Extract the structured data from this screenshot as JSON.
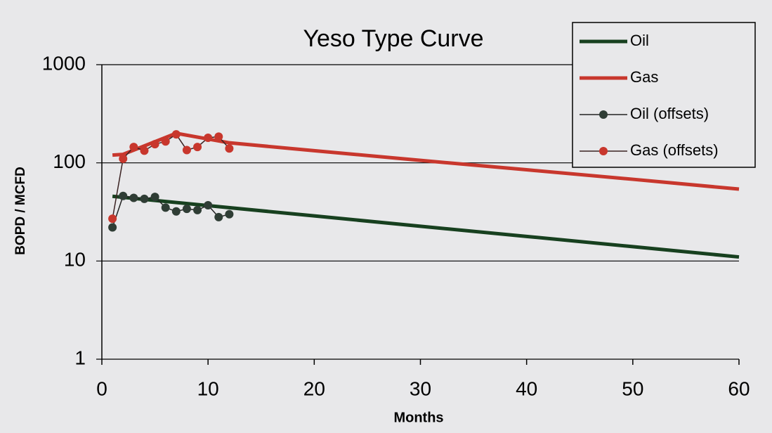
{
  "chart_data": {
    "type": "line",
    "title": "Yeso Type Curve",
    "x_label": "Months",
    "y_label": "BOPD / MCFD",
    "xlim": [
      0,
      60
    ],
    "xticks": [
      0,
      10,
      20,
      30,
      40,
      50,
      60
    ],
    "ylim": [
      1,
      1000
    ],
    "yticks": [
      1,
      10,
      100,
      1000
    ],
    "ylog": true,
    "grid": true,
    "legend": "upper right",
    "series": [
      {
        "name": "Oil",
        "color": "#17401f",
        "line_width": 5,
        "marker": false,
        "x": [
          1,
          10,
          20,
          30,
          40,
          50,
          60
        ],
        "values": [
          45.6,
          36.7,
          28.8,
          22.6,
          17.8,
          14,
          11
        ]
      },
      {
        "name": "Gas",
        "color": "#c8372d",
        "line_width": 5,
        "marker": false,
        "x": [
          1,
          2,
          7,
          12,
          20,
          30,
          40,
          50,
          60
        ],
        "values": [
          120,
          122,
          200,
          160,
          133,
          106,
          85,
          68,
          54
        ]
      },
      {
        "name": "Oil (offsets)",
        "color": "#222222",
        "marker_color": "#2f3d35",
        "line_width": 1.5,
        "marker": true,
        "x": [
          1,
          2,
          3,
          4,
          5,
          6,
          7,
          8,
          9,
          10,
          11,
          12
        ],
        "values": [
          22,
          46,
          44,
          43,
          45,
          35,
          32,
          34,
          33,
          37,
          28,
          30
        ]
      },
      {
        "name": "Gas (offsets)",
        "color": "#3a2222",
        "marker_color": "#c8372d",
        "line_width": 1.5,
        "marker": true,
        "x": [
          1,
          2,
          3,
          4,
          5,
          6,
          7,
          8,
          9,
          10,
          11,
          12
        ],
        "values": [
          27,
          110,
          145,
          133,
          155,
          165,
          195,
          135,
          145,
          180,
          185,
          140
        ]
      }
    ]
  }
}
